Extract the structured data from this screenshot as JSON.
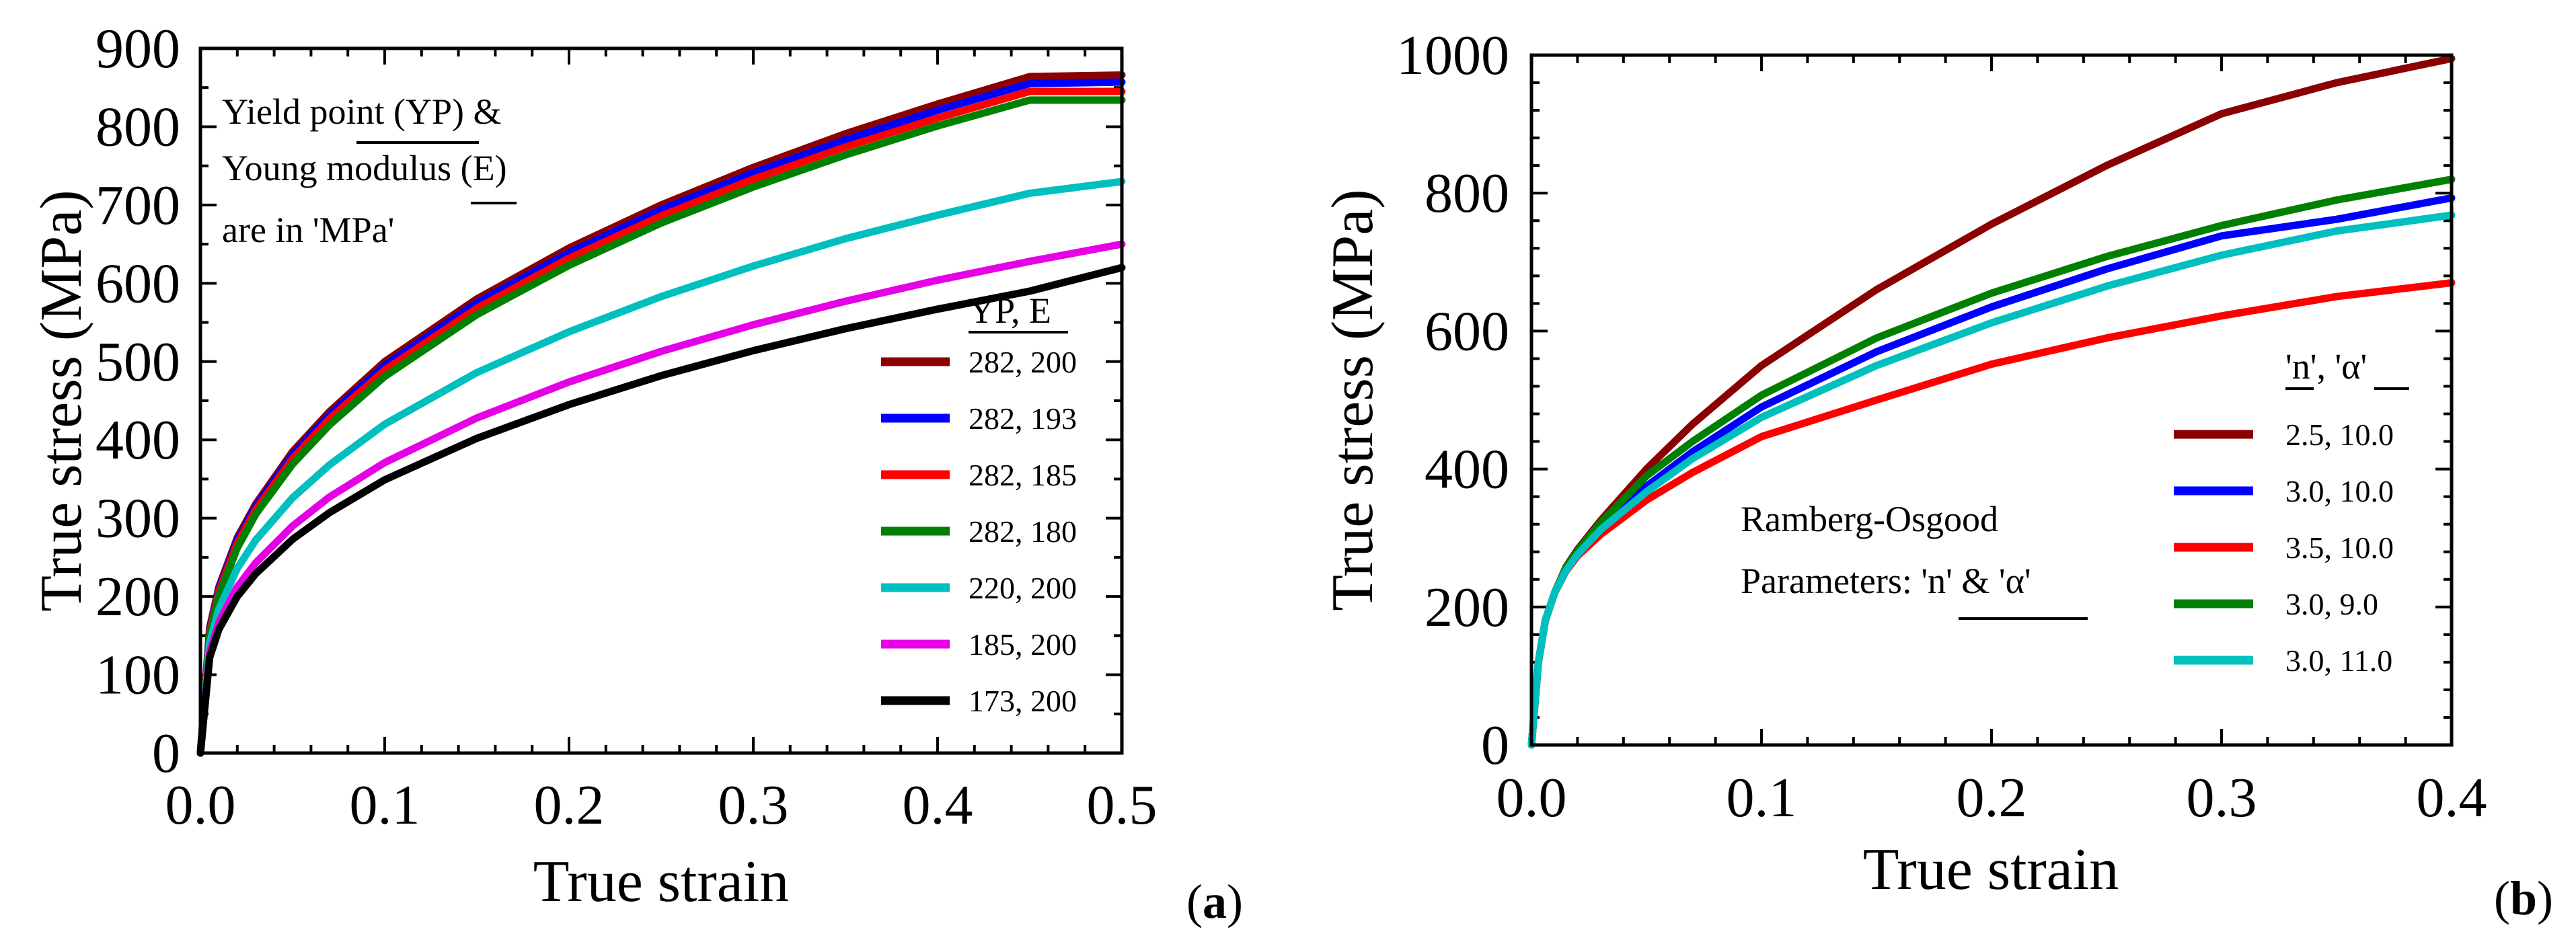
{
  "chart_data": [
    {
      "type": "line",
      "panel_label": "a",
      "xlabel": "True strain",
      "ylabel": "True stress (MPa)",
      "xlim": [
        0.0,
        0.5
      ],
      "ylim": [
        0,
        900
      ],
      "xticks": [
        0.0,
        0.1,
        0.2,
        0.3,
        0.4,
        0.5
      ],
      "xtick_labels": [
        "0.0",
        "0.1",
        "0.2",
        "0.3",
        "0.4",
        "0.5"
      ],
      "yticks": [
        0,
        100,
        200,
        300,
        400,
        500,
        600,
        700,
        800,
        900
      ],
      "ytick_labels": [
        "0",
        "100",
        "200",
        "300",
        "400",
        "500",
        "600",
        "700",
        "800",
        "900"
      ],
      "annotation_lines": [
        "Yield point (YP) &",
        "Young modulus (E)",
        "are in 'MPa'"
      ],
      "legend_title": "YP,  E",
      "legend_position": "right",
      "x": [
        0.0,
        0.005,
        0.01,
        0.02,
        0.03,
        0.05,
        0.07,
        0.1,
        0.15,
        0.2,
        0.25,
        0.3,
        0.35,
        0.4,
        0.45,
        0.5
      ],
      "series": [
        {
          "name": "282, 200",
          "color": "#8b0000",
          "values": [
            0,
            160,
            212,
            275,
            318,
            385,
            436,
            500,
            580,
            645,
            700,
            748,
            791,
            829,
            864,
            866
          ]
        },
        {
          "name": "282, 193",
          "color": "#0000ff",
          "values": [
            0,
            157,
            209,
            272,
            315,
            381,
            432,
            495,
            575,
            639,
            694,
            741,
            783,
            821,
            855,
            857
          ]
        },
        {
          "name": "282, 185",
          "color": "#ff0000",
          "values": [
            0,
            154,
            206,
            268,
            311,
            376,
            427,
            489,
            568,
            632,
            686,
            733,
            774,
            811,
            845,
            845
          ]
        },
        {
          "name": "282, 180",
          "color": "#008000",
          "values": [
            0,
            150,
            201,
            262,
            305,
            369,
            419,
            481,
            560,
            623,
            677,
            723,
            764,
            801,
            834,
            834
          ]
        },
        {
          "name": "220, 200",
          "color": "#00bfbf",
          "values": [
            0,
            140,
            184,
            236,
            272,
            326,
            368,
            420,
            486,
            538,
            583,
            622,
            657,
            687,
            715,
            730
          ]
        },
        {
          "name": "185, 200",
          "color": "#e600e6",
          "values": [
            0,
            128,
            167,
            212,
            243,
            290,
            327,
            371,
            428,
            474,
            513,
            547,
            577,
            604,
            628,
            650
          ]
        },
        {
          "name": "173, 200",
          "color": "#000000",
          "values": [
            0,
            122,
            158,
            200,
            229,
            273,
            307,
            349,
            402,
            445,
            482,
            514,
            542,
            567,
            590,
            620
          ]
        }
      ]
    },
    {
      "type": "line",
      "panel_label": "b",
      "xlabel": "True strain",
      "ylabel": "True stress (MPa)",
      "xlim": [
        0.0,
        0.4
      ],
      "ylim": [
        0,
        1000
      ],
      "xticks": [
        0.0,
        0.1,
        0.2,
        0.3,
        0.4
      ],
      "xtick_labels": [
        "0.0",
        "0.1",
        "0.2",
        "0.3",
        "0.4"
      ],
      "yticks": [
        0,
        200,
        400,
        600,
        800,
        1000
      ],
      "ytick_labels": [
        "0",
        "200",
        "400",
        "600",
        "800",
        "1000"
      ],
      "annotation_lines": [
        "Ramberg-Osgood",
        "Parameters: 'n' & 'α'"
      ],
      "legend_title": "'n',   'α'",
      "legend_position": "right",
      "x": [
        0.0,
        0.003,
        0.006,
        0.01,
        0.015,
        0.02,
        0.03,
        0.05,
        0.07,
        0.1,
        0.15,
        0.2,
        0.25,
        0.3,
        0.35,
        0.4
      ],
      "series": [
        {
          "name": "2.5, 10.0",
          "color": "#8b0000",
          "values": [
            0,
            120,
            180,
            220,
            258,
            283,
            325,
            400,
            465,
            550,
            660,
            755,
            840,
            915,
            960,
            995
          ]
        },
        {
          "name": "3.0, 10.0",
          "color": "#0000ff",
          "values": [
            0,
            120,
            180,
            220,
            255,
            278,
            316,
            375,
            425,
            490,
            570,
            635,
            690,
            738,
            762,
            793
          ]
        },
        {
          "name": "3.5, 10.0",
          "color": "#ff0000",
          "values": [
            0,
            120,
            180,
            220,
            252,
            274,
            305,
            355,
            395,
            447,
            500,
            552,
            590,
            622,
            650,
            670
          ]
        },
        {
          "name": "3.0, 9.0",
          "color": "#008000",
          "values": [
            0,
            120,
            180,
            220,
            257,
            281,
            322,
            390,
            440,
            507,
            590,
            655,
            708,
            753,
            790,
            820
          ]
        },
        {
          "name": "3.0, 11.0",
          "color": "#00bfbf",
          "values": [
            0,
            120,
            180,
            220,
            253,
            276,
            312,
            367,
            415,
            475,
            550,
            612,
            665,
            710,
            745,
            768
          ]
        }
      ]
    }
  ]
}
